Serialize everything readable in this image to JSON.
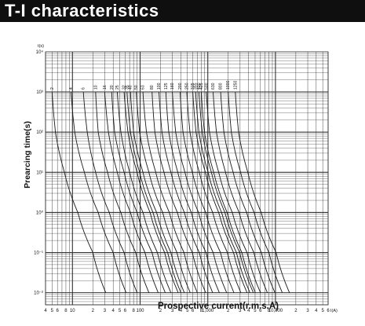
{
  "header": {
    "title": "T-I characteristics"
  },
  "chart_data": {
    "type": "line",
    "title": "T-I characteristics",
    "xlabel": "Prospective current(r.m.s.A)",
    "ylabel": "Prearcing time(s)",
    "x_unit": "I(A)",
    "y_unit": "t(s)",
    "x_scale": "log",
    "y_scale": "log",
    "xlim": [
      4,
      60000
    ],
    "ylim": [
      0.005,
      10000
    ],
    "grid": true,
    "y_tick_labels": [
      "10⁴",
      "10³",
      "10²",
      "10¹",
      "10⁰",
      "10⁻¹",
      "10⁻²"
    ],
    "x_tick_labels": [
      {
        "x": 4,
        "label": "4"
      },
      {
        "x": 5,
        "label": "5"
      },
      {
        "x": 6,
        "label": "6"
      },
      {
        "x": 8,
        "label": "8"
      },
      {
        "x": 10,
        "label": "10"
      },
      {
        "x": 20,
        "label": "2"
      },
      {
        "x": 30,
        "label": "3"
      },
      {
        "x": 40,
        "label": "4"
      },
      {
        "x": 50,
        "label": "5"
      },
      {
        "x": 60,
        "label": "6"
      },
      {
        "x": 80,
        "label": "8"
      },
      {
        "x": 100,
        "label": "100"
      },
      {
        "x": 200,
        "label": "2"
      },
      {
        "x": 300,
        "label": "3"
      },
      {
        "x": 400,
        "label": "4"
      },
      {
        "x": 500,
        "label": "5"
      },
      {
        "x": 600,
        "label": "6"
      },
      {
        "x": 800,
        "label": "8"
      },
      {
        "x": 1000,
        "label": "1,000"
      },
      {
        "x": 2000,
        "label": "2"
      },
      {
        "x": 3000,
        "label": "3"
      },
      {
        "x": 4000,
        "label": "4"
      },
      {
        "x": 5000,
        "label": "5"
      },
      {
        "x": 6000,
        "label": "6"
      },
      {
        "x": 8000,
        "label": "8"
      },
      {
        "x": 10000,
        "label": "10,000"
      },
      {
        "x": 20000,
        "label": "2"
      },
      {
        "x": 30000,
        "label": "3"
      },
      {
        "x": 40000,
        "label": "4"
      },
      {
        "x": 50000,
        "label": "5"
      },
      {
        "x": 60000,
        "label": "6"
      }
    ],
    "series": [
      {
        "name": "2",
        "points": [
          [
            5.0,
            1000
          ],
          [
            5.6,
            100
          ],
          [
            7.6,
            10
          ],
          [
            12,
            1
          ],
          [
            20,
            0.1
          ],
          [
            31,
            0.01
          ]
        ]
      },
      {
        "name": "4",
        "points": [
          [
            9.5,
            1000
          ],
          [
            10.8,
            100
          ],
          [
            15,
            10
          ],
          [
            24,
            1
          ],
          [
            40,
            0.1
          ],
          [
            62,
            0.01
          ]
        ]
      },
      {
        "name": "6",
        "points": [
          [
            14.5,
            1000
          ],
          [
            16.5,
            100
          ],
          [
            22,
            10
          ],
          [
            35,
            1
          ],
          [
            58,
            0.1
          ],
          [
            90,
            0.01
          ]
        ]
      },
      {
        "name": "10",
        "points": [
          [
            22,
            1000
          ],
          [
            24,
            100
          ],
          [
            33,
            10
          ],
          [
            52,
            1
          ],
          [
            86,
            0.1
          ],
          [
            135,
            0.01
          ]
        ]
      },
      {
        "name": "16",
        "points": [
          [
            30,
            1000
          ],
          [
            34,
            100
          ],
          [
            46,
            10
          ],
          [
            72,
            1
          ],
          [
            118,
            0.1
          ],
          [
            185,
            0.01
          ]
        ]
      },
      {
        "name": "20",
        "points": [
          [
            38,
            1000
          ],
          [
            42,
            100
          ],
          [
            58,
            10
          ],
          [
            90,
            1
          ],
          [
            150,
            0.1
          ],
          [
            235,
            0.01
          ]
        ]
      },
      {
        "name": "25",
        "points": [
          [
            46,
            1000
          ],
          [
            52,
            100
          ],
          [
            70,
            10
          ],
          [
            110,
            1
          ],
          [
            180,
            0.1
          ],
          [
            285,
            0.01
          ]
        ]
      },
      {
        "name": "32",
        "points": [
          [
            58,
            1000
          ],
          [
            66,
            100
          ],
          [
            90,
            10
          ],
          [
            140,
            1
          ],
          [
            230,
            0.1
          ],
          [
            365,
            0.01
          ]
        ]
      },
      {
        "name": "35",
        "points": [
          [
            64,
            1000
          ],
          [
            72,
            100
          ],
          [
            98,
            10
          ],
          [
            155,
            1
          ],
          [
            255,
            0.1
          ],
          [
            400,
            0.01
          ]
        ]
      },
      {
        "name": "40",
        "points": [
          [
            72,
            1000
          ],
          [
            80,
            100
          ],
          [
            110,
            10
          ],
          [
            175,
            1
          ],
          [
            285,
            0.1
          ],
          [
            450,
            0.01
          ]
        ]
      },
      {
        "name": "50",
        "points": [
          [
            88,
            1000
          ],
          [
            98,
            100
          ],
          [
            135,
            10
          ],
          [
            215,
            1
          ],
          [
            350,
            0.1
          ],
          [
            550,
            0.01
          ]
        ]
      },
      {
        "name": "63",
        "points": [
          [
            110,
            1000
          ],
          [
            124,
            100
          ],
          [
            170,
            10
          ],
          [
            270,
            1
          ],
          [
            445,
            0.1
          ],
          [
            700,
            0.01
          ]
        ]
      },
      {
        "name": "80",
        "points": [
          [
            150,
            1000
          ],
          [
            165,
            100
          ],
          [
            225,
            10
          ],
          [
            355,
            1
          ],
          [
            590,
            0.1
          ],
          [
            930,
            0.01
          ]
        ]
      },
      {
        "name": "100",
        "points": [
          [
            190,
            1000
          ],
          [
            210,
            100
          ],
          [
            285,
            10
          ],
          [
            450,
            1
          ],
          [
            750,
            0.1
          ],
          [
            1180,
            0.01
          ]
        ]
      },
      {
        "name": "125",
        "points": [
          [
            240,
            1000
          ],
          [
            265,
            100
          ],
          [
            360,
            10
          ],
          [
            570,
            1
          ],
          [
            940,
            0.1
          ],
          [
            1480,
            0.01
          ]
        ]
      },
      {
        "name": "160",
        "points": [
          [
            300,
            1000
          ],
          [
            335,
            100
          ],
          [
            460,
            10
          ],
          [
            730,
            1
          ],
          [
            1200,
            0.1
          ],
          [
            1900,
            0.01
          ]
        ]
      },
      {
        "name": "200",
        "points": [
          [
            390,
            1000
          ],
          [
            430,
            100
          ],
          [
            590,
            10
          ],
          [
            930,
            1
          ],
          [
            1540,
            0.1
          ],
          [
            2430,
            0.01
          ]
        ]
      },
      {
        "name": "250",
        "points": [
          [
            490,
            1000
          ],
          [
            545,
            100
          ],
          [
            750,
            10
          ],
          [
            1180,
            1
          ],
          [
            1950,
            0.1
          ],
          [
            3080,
            0.01
          ]
        ]
      },
      {
        "name": "315",
        "points": [
          [
            600,
            1000
          ],
          [
            670,
            100
          ],
          [
            920,
            10
          ],
          [
            1450,
            1
          ],
          [
            2400,
            0.1
          ],
          [
            3800,
            0.01
          ]
        ]
      },
      {
        "name": "355",
        "points": [
          [
            660,
            1000
          ],
          [
            740,
            100
          ],
          [
            1010,
            10
          ],
          [
            1600,
            1
          ],
          [
            2650,
            0.1
          ],
          [
            4200,
            0.01
          ]
        ]
      },
      {
        "name": "400",
        "points": [
          [
            740,
            1000
          ],
          [
            830,
            100
          ],
          [
            1130,
            10
          ],
          [
            1790,
            1
          ],
          [
            2960,
            0.1
          ],
          [
            4700,
            0.01
          ]
        ]
      },
      {
        "name": "425",
        "points": [
          [
            800,
            1000
          ],
          [
            890,
            100
          ],
          [
            1220,
            10
          ],
          [
            1930,
            1
          ],
          [
            3190,
            0.1
          ],
          [
            5050,
            0.01
          ]
        ]
      },
      {
        "name": "500",
        "points": [
          [
            950,
            1000
          ],
          [
            1060,
            100
          ],
          [
            1450,
            10
          ],
          [
            2300,
            1
          ],
          [
            3800,
            0.1
          ],
          [
            6000,
            0.01
          ]
        ]
      },
      {
        "name": "630",
        "points": [
          [
            1200,
            1000
          ],
          [
            1340,
            100
          ],
          [
            1830,
            10
          ],
          [
            2900,
            1
          ],
          [
            4800,
            0.1
          ],
          [
            7600,
            0.01
          ]
        ]
      },
      {
        "name": "800",
        "points": [
          [
            1550,
            1000
          ],
          [
            1730,
            100
          ],
          [
            2370,
            10
          ],
          [
            3750,
            1
          ],
          [
            6200,
            0.1
          ],
          [
            9800,
            0.01
          ]
        ]
      },
      {
        "name": "1000",
        "points": [
          [
            2000,
            1000
          ],
          [
            2230,
            100
          ],
          [
            3050,
            10
          ],
          [
            4830,
            1
          ],
          [
            8000,
            0.1
          ],
          [
            12600,
            0.01
          ]
        ]
      },
      {
        "name": "1250",
        "points": [
          [
            2550,
            1000
          ],
          [
            2850,
            100
          ],
          [
            3900,
            10
          ],
          [
            6150,
            1
          ],
          [
            10200,
            0.1
          ],
          [
            16100,
            0.01
          ]
        ]
      }
    ]
  }
}
